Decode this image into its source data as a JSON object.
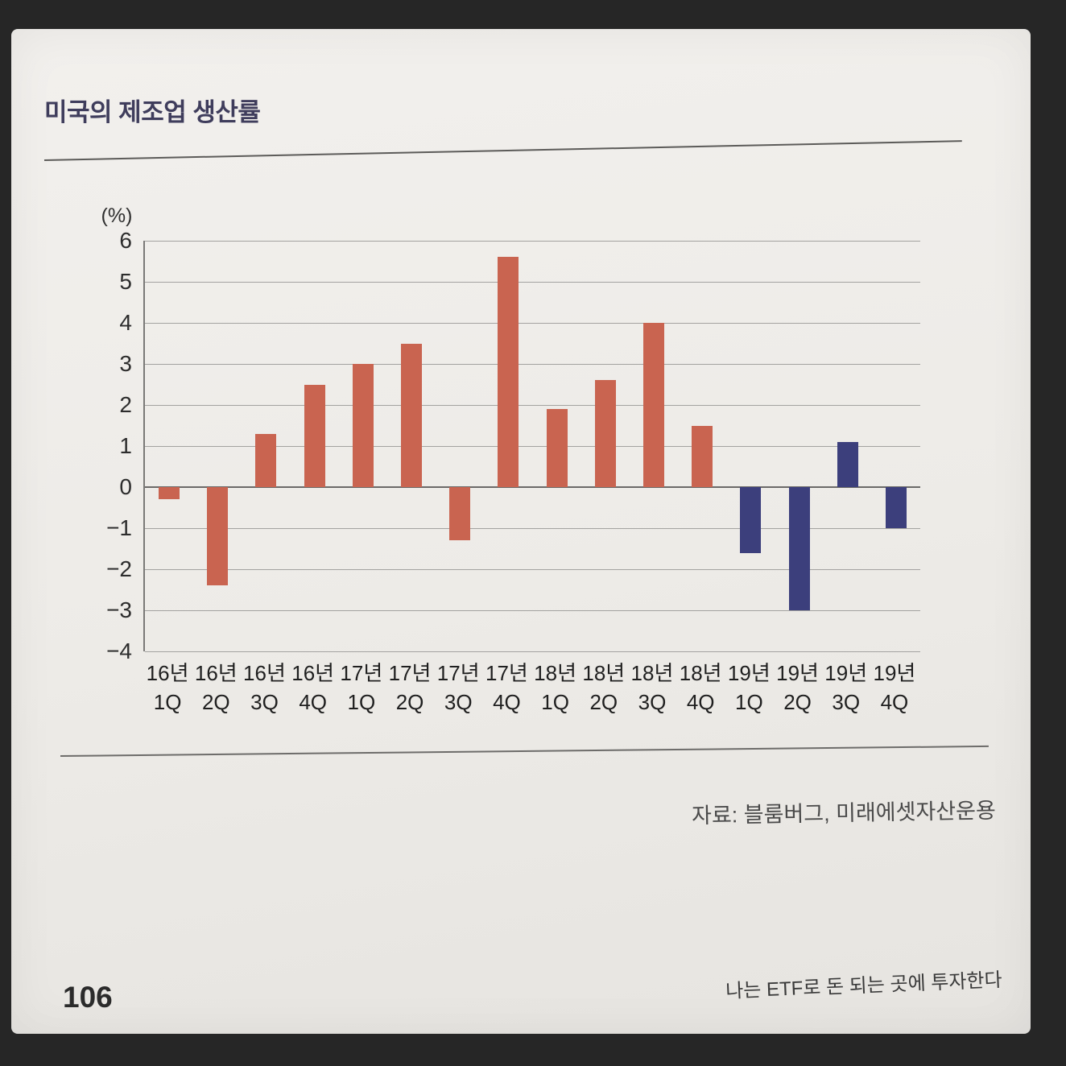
{
  "page": {
    "title": "미국의 제조업 생산률",
    "source": "자료: 블룸버그, 미래에셋자산운용",
    "page_number": "106",
    "footer_right": "나는 ETF로 돈 되는 곳에 투자한다"
  },
  "chart_data": {
    "type": "bar",
    "title": "미국의 제조업 생산률",
    "ylabel": "(%)",
    "xlabel": "",
    "ylim": [
      -4,
      6
    ],
    "ytick_step": 1,
    "grid": true,
    "legend": "none",
    "categories": [
      "16년 1Q",
      "16년 2Q",
      "16년 3Q",
      "16년 4Q",
      "17년 1Q",
      "17년 2Q",
      "17년 3Q",
      "17년 4Q",
      "18년 1Q",
      "18년 2Q",
      "18년 3Q",
      "18년 4Q",
      "19년 1Q",
      "19년 2Q",
      "19년 3Q",
      "19년 4Q"
    ],
    "values": [
      -0.3,
      -2.4,
      1.3,
      2.5,
      3.0,
      3.5,
      -1.3,
      5.6,
      1.9,
      2.6,
      4.0,
      1.5,
      -1.6,
      -3.0,
      1.1,
      -1.0
    ],
    "bar_colors": [
      "#c96450",
      "#c96450",
      "#c96450",
      "#c96450",
      "#c96450",
      "#c96450",
      "#c96450",
      "#c96450",
      "#c96450",
      "#c96450",
      "#c96450",
      "#c96450",
      "#3c3f7c",
      "#3c3f7c",
      "#3c3f7c",
      "#3c3f7c"
    ],
    "accent_red": "#c96450",
    "accent_blue": "#3c3f7c"
  }
}
